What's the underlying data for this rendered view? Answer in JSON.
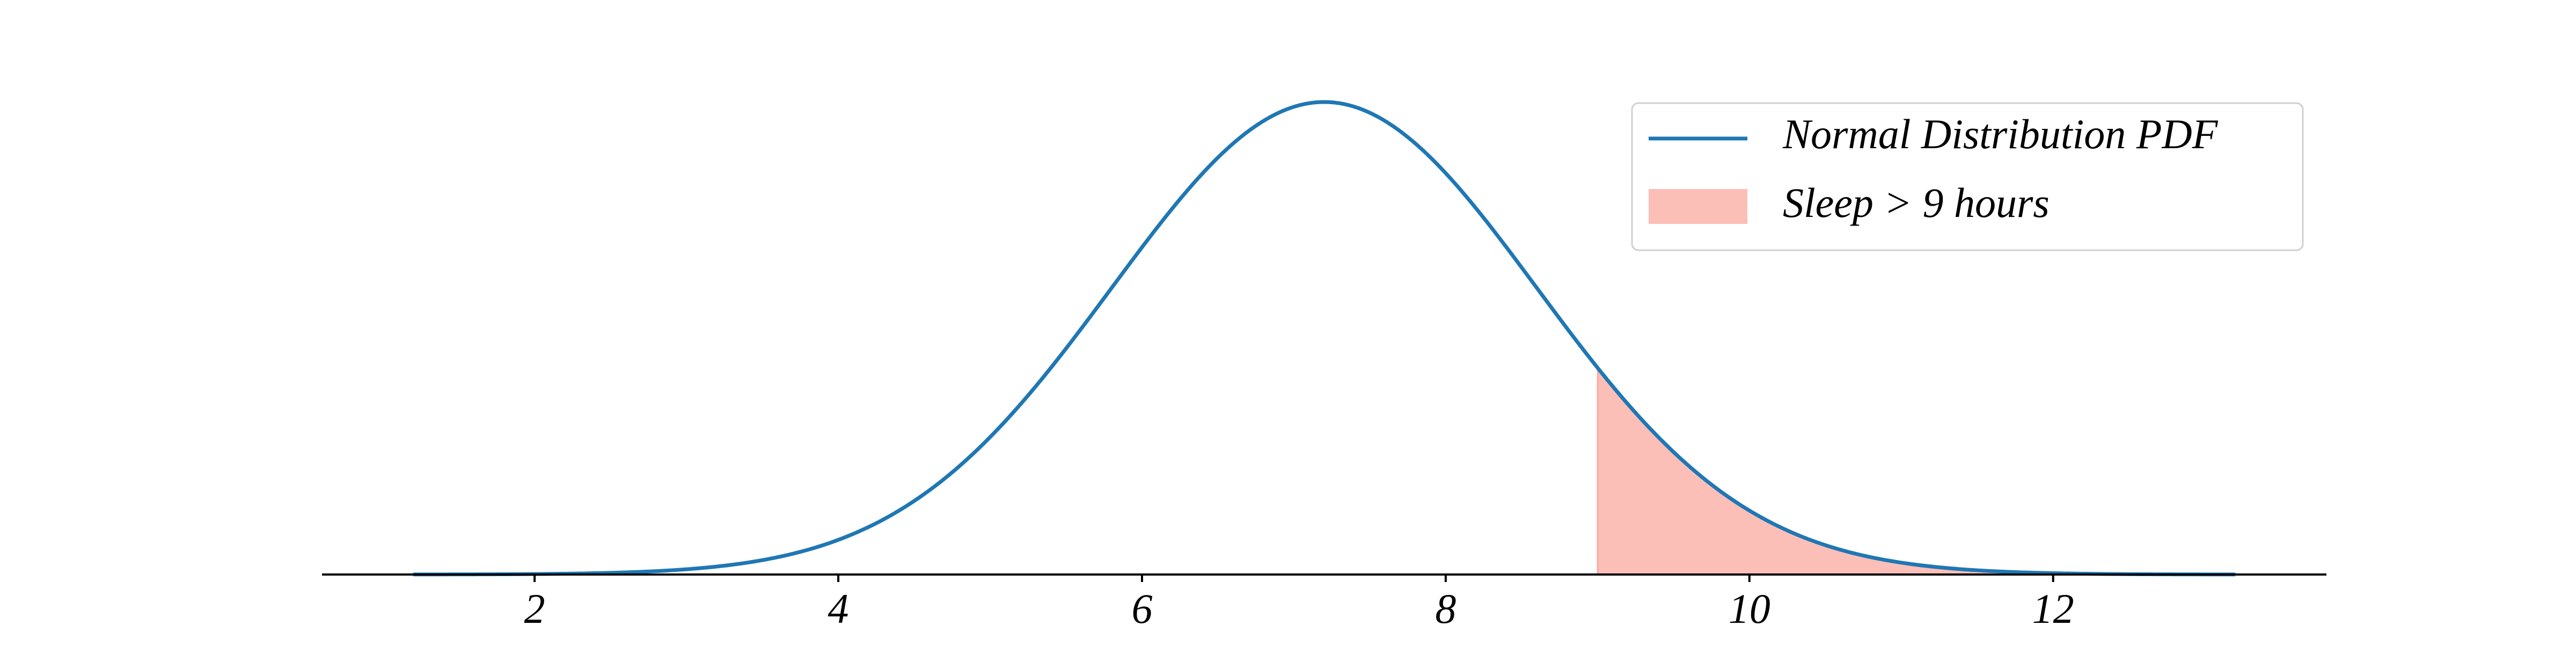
{
  "chart_data": {
    "type": "area",
    "title": "",
    "xlabel": "",
    "ylabel": "",
    "xlim": [
      0.6,
      13.8
    ],
    "xticks": [
      2,
      4,
      6,
      8,
      10,
      12
    ],
    "xtick_labels": [
      "2",
      "4",
      "6",
      "8",
      "10",
      "12"
    ],
    "show_y_axis": false,
    "grid": false,
    "legend_position": "top-right",
    "distribution": {
      "mean": 7.2,
      "std": 1.4,
      "x_range": [
        1.2,
        13.2
      ]
    },
    "series": [
      {
        "name": "Normal Distribution PDF",
        "kind": "line",
        "color": "#1f77b4"
      },
      {
        "name": "Sleep > 9 hours",
        "kind": "fill",
        "color": "#fa8072",
        "x_from": 9,
        "x_to": 13.2
      }
    ]
  }
}
